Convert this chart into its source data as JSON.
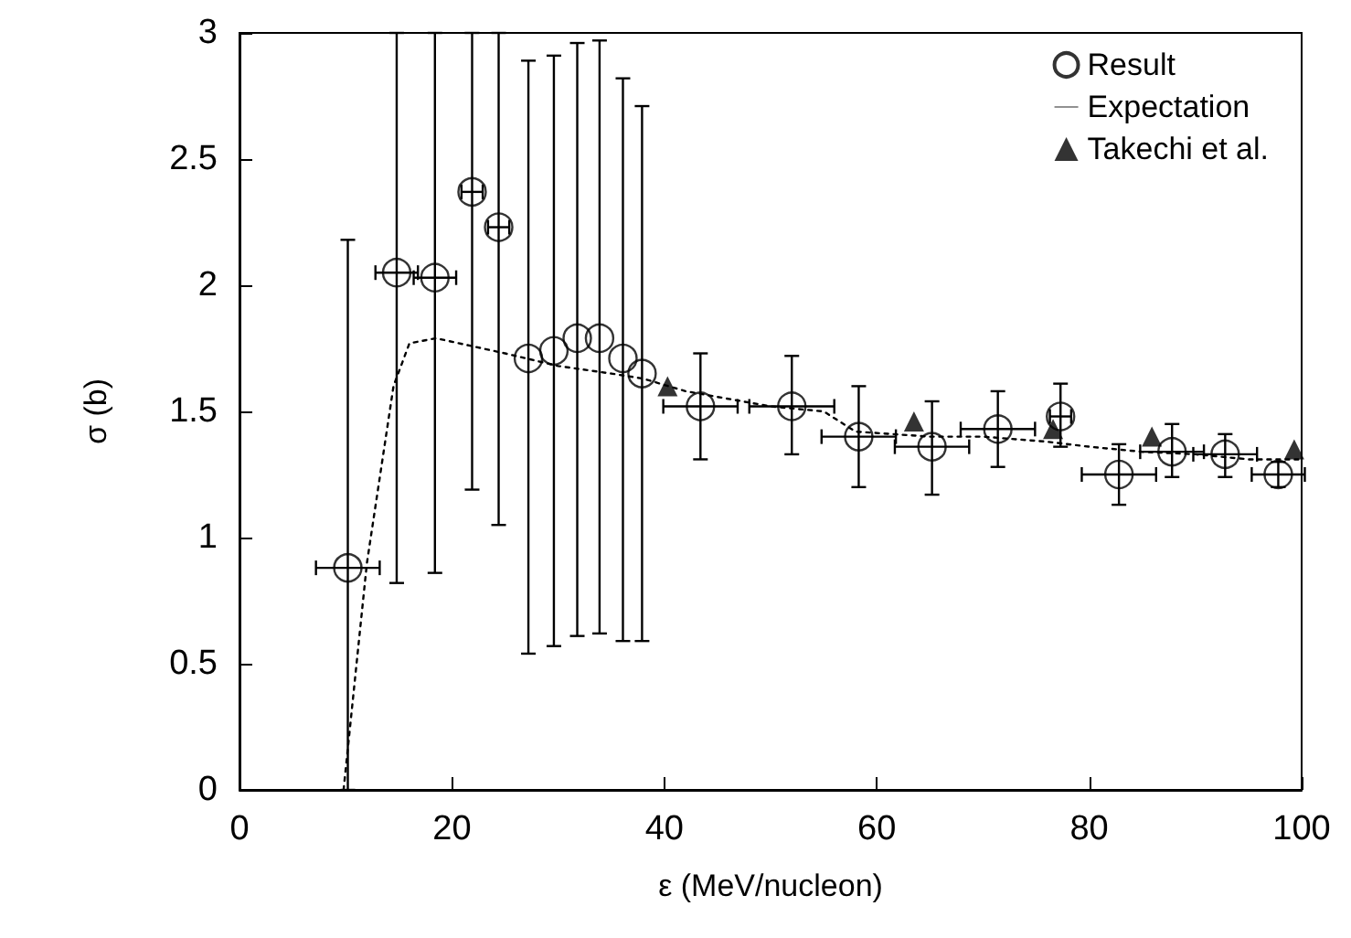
{
  "chart_data": {
    "type": "scatter",
    "xlabel": "ε (MeV/nucleon)",
    "ylabel": "σ (b)",
    "xlim": [
      0,
      100
    ],
    "xticks": [
      0,
      20,
      40,
      60,
      80,
      100
    ],
    "ylim": [
      0,
      3
    ],
    "yticks": [
      0,
      0.5,
      1,
      1.5,
      2,
      2.5,
      3
    ],
    "grid": false,
    "legend": "top right",
    "series": [
      {
        "name": "Result",
        "type": "scatter",
        "marker": "circle",
        "color": "#000000",
        "x": [
          10.2,
          14.8,
          18.4,
          21.9,
          24.4,
          27.2,
          29.6,
          31.8,
          33.9,
          36.1,
          37.9,
          43.4,
          52,
          58.3,
          65.2,
          71.4,
          77.3,
          82.8,
          87.8,
          92.8,
          97.8
        ],
        "values": [
          0.88,
          2.05,
          2.03,
          2.37,
          2.23,
          1.71,
          1.74,
          1.79,
          1.79,
          1.71,
          1.65,
          1.52,
          1.52,
          1.4,
          1.36,
          1.43,
          1.48,
          1.25,
          1.34,
          1.33,
          1.25
        ],
        "errors": [
          [
            0,
            2.18
          ],
          [
            0.82,
            3
          ],
          [
            0.86,
            3
          ],
          [
            1.19,
            3
          ],
          [
            1.05,
            3
          ],
          [
            0.54,
            2.89
          ],
          [
            0.57,
            2.91
          ],
          [
            0.61,
            2.96
          ],
          [
            0.62,
            2.97
          ],
          [
            0.59,
            2.82
          ],
          [
            0.59,
            2.71
          ],
          [
            1.31,
            1.73
          ],
          [
            1.33,
            1.72
          ],
          [
            1.2,
            1.6
          ],
          [
            1.17,
            1.54
          ],
          [
            1.28,
            1.58
          ],
          [
            1.36,
            1.61
          ],
          [
            1.13,
            1.37
          ],
          [
            1.24,
            1.45
          ],
          [
            1.24,
            1.41
          ],
          [
            1.2,
            1.3
          ]
        ],
        "xerrors": [
          3,
          2,
          2,
          1,
          1,
          null,
          null,
          null,
          null,
          null,
          null,
          3.5,
          4,
          3.5,
          3.5,
          3.5,
          1,
          3.5,
          3,
          3,
          2.5
        ]
      },
      {
        "name": "Expectation",
        "type": "line",
        "marker": "none",
        "line_style": "dotted",
        "color": "#000000",
        "x": [
          9.8,
          12,
          14.5,
          16,
          18.5,
          25,
          30,
          35,
          38,
          42,
          50,
          55,
          58,
          65,
          70,
          76,
          80,
          85,
          90,
          95,
          100
        ],
        "values": [
          0,
          0.9,
          1.6,
          1.77,
          1.79,
          1.73,
          1.68,
          1.65,
          1.63,
          1.58,
          1.52,
          1.5,
          1.42,
          1.4,
          1.4,
          1.38,
          1.36,
          1.34,
          1.33,
          1.31,
          1.31
        ]
      },
      {
        "name": "Takechi et al.",
        "type": "scatter",
        "marker": "triangle",
        "color": "#000000",
        "x": [
          40.3,
          63.5,
          76.6,
          85.9,
          99.3
        ],
        "values": [
          1.6,
          1.46,
          1.43,
          1.4,
          1.35
        ]
      }
    ]
  }
}
